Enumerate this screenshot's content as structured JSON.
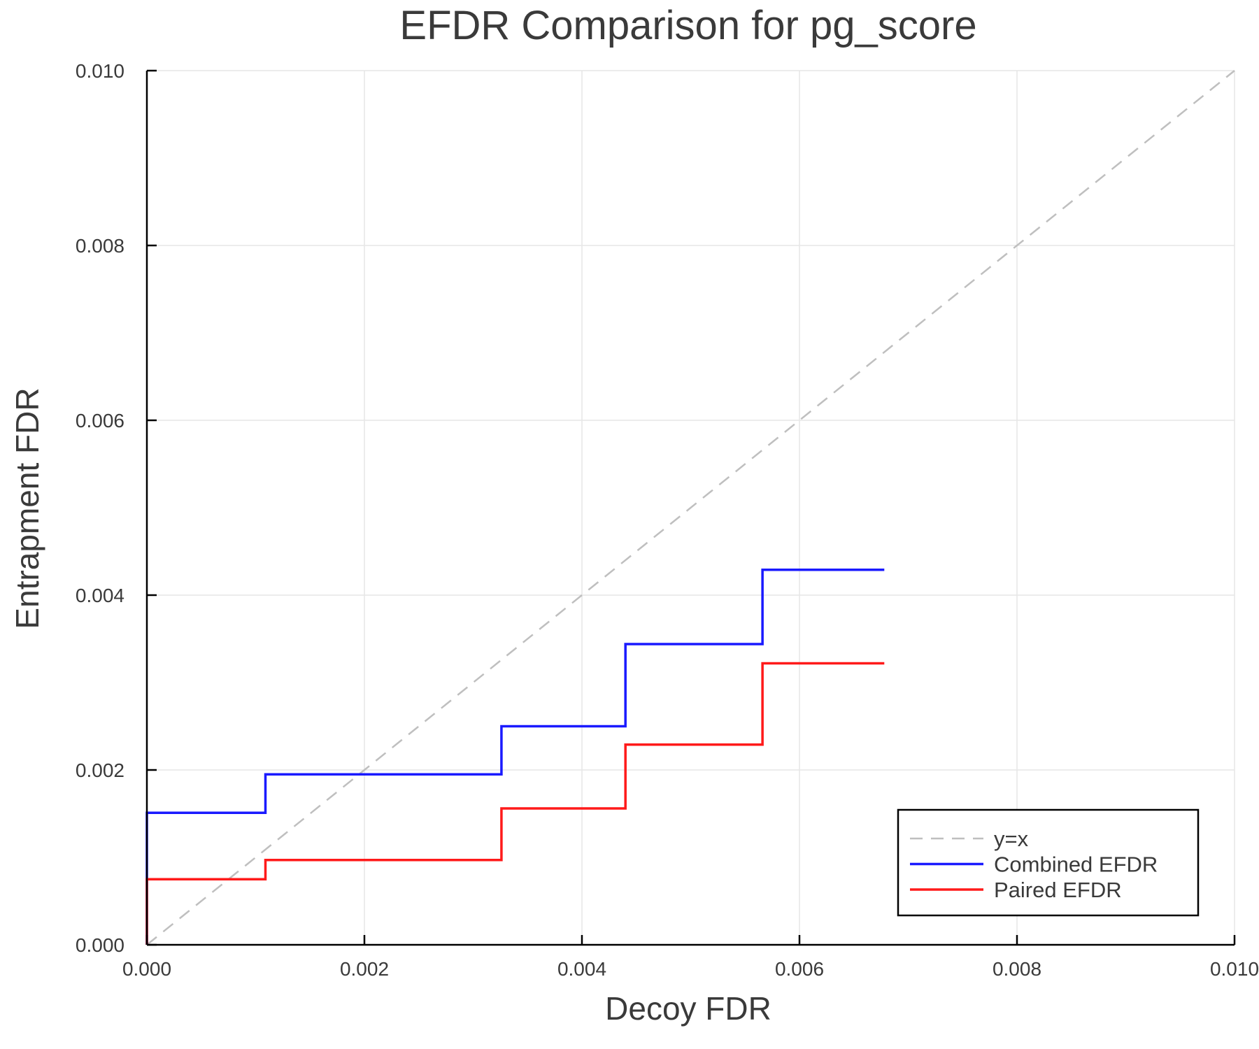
{
  "chart_data": {
    "type": "line",
    "title": "EFDR Comparison for pg_score",
    "xlabel": "Decoy FDR",
    "ylabel": "Entrapment FDR",
    "xlim": [
      0,
      0.01
    ],
    "ylim": [
      0,
      0.01
    ],
    "xticks": [
      "0.000",
      "0.002",
      "0.004",
      "0.006",
      "0.008",
      "0.010"
    ],
    "yticks": [
      "0.000",
      "0.002",
      "0.004",
      "0.006",
      "0.008",
      "0.010"
    ],
    "grid": true,
    "legend_position": "bottom-right",
    "series": [
      {
        "name": "y=x",
        "style": "dashed",
        "color": "#bfbfbf",
        "step": false,
        "x": [
          0,
          0.01
        ],
        "y": [
          0,
          0.01
        ]
      },
      {
        "name": "Combined EFDR",
        "style": "solid",
        "color": "#1a1aff",
        "step": true,
        "x": [
          0,
          0,
          0.00109,
          0.00326,
          0.0044,
          0.00566,
          0.00678
        ],
        "y": [
          0,
          0.00151,
          0.00195,
          0.0025,
          0.00344,
          0.00429,
          0.00429
        ]
      },
      {
        "name": "Paired EFDR",
        "style": "solid",
        "color": "#ff1a1a",
        "step": true,
        "x": [
          0,
          0,
          0.00109,
          0.00326,
          0.0044,
          0.00566,
          0.00678
        ],
        "y": [
          0,
          0.00075,
          0.00097,
          0.00156,
          0.00229,
          0.00322,
          0.00322
        ]
      }
    ]
  }
}
